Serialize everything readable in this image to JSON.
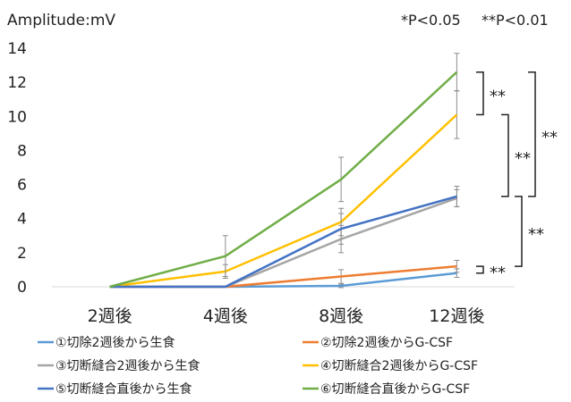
{
  "chart_data": {
    "type": "line",
    "ylabel": "Amplitude:mV",
    "significance_note_1": "*P<0.05",
    "significance_note_2": "**P<0.01",
    "categories": [
      "2週後",
      "4週後",
      "8週後",
      "12週後"
    ],
    "ylim": [
      0,
      14
    ],
    "yticks": [
      0,
      2,
      4,
      6,
      8,
      10,
      12,
      14
    ],
    "grid": false,
    "legend_position": "bottom",
    "series": [
      {
        "name": "①切除2週後から生食",
        "color": "#5b9bd5",
        "values": [
          0,
          0,
          0.05,
          0.8
        ],
        "errors": [
          0,
          0,
          0.1,
          0.25
        ]
      },
      {
        "name": "②切除2週後からG-CSF",
        "color": "#ed7d31",
        "values": [
          0,
          0,
          0.6,
          1.2
        ],
        "errors": [
          0,
          0,
          0.4,
          0.35
        ]
      },
      {
        "name": "③切断縫合2週後から生食",
        "color": "#a5a5a5",
        "values": [
          0,
          0,
          2.8,
          5.2
        ],
        "errors": [
          0,
          0,
          0.8,
          0.5
        ]
      },
      {
        "name": "④切断縫合2週後からG-CSF",
        "color": "#ffc000",
        "values": [
          0,
          0.9,
          3.8,
          10.1
        ],
        "errors": [
          0,
          0.4,
          0.8,
          1.4
        ]
      },
      {
        "name": "⑤切断縫合直後から生食",
        "color": "#4472c4",
        "values": [
          0,
          0,
          3.4,
          5.3
        ],
        "errors": [
          0,
          0,
          0.9,
          0.6
        ]
      },
      {
        "name": "⑥切断縫合直後からG-CSF",
        "color": "#70ad47",
        "values": [
          0,
          1.8,
          6.3,
          12.6
        ],
        "errors": [
          0,
          1.2,
          1.3,
          1.1
        ]
      }
    ],
    "annotations": [
      {
        "label": "**",
        "between": [
          6,
          4
        ]
      },
      {
        "label": "**",
        "between": [
          4,
          5
        ]
      },
      {
        "label": "**",
        "between": [
          6,
          5
        ]
      },
      {
        "label": "**",
        "between": [
          5,
          2
        ]
      },
      {
        "label": "**",
        "between": [
          2,
          1
        ]
      }
    ]
  }
}
